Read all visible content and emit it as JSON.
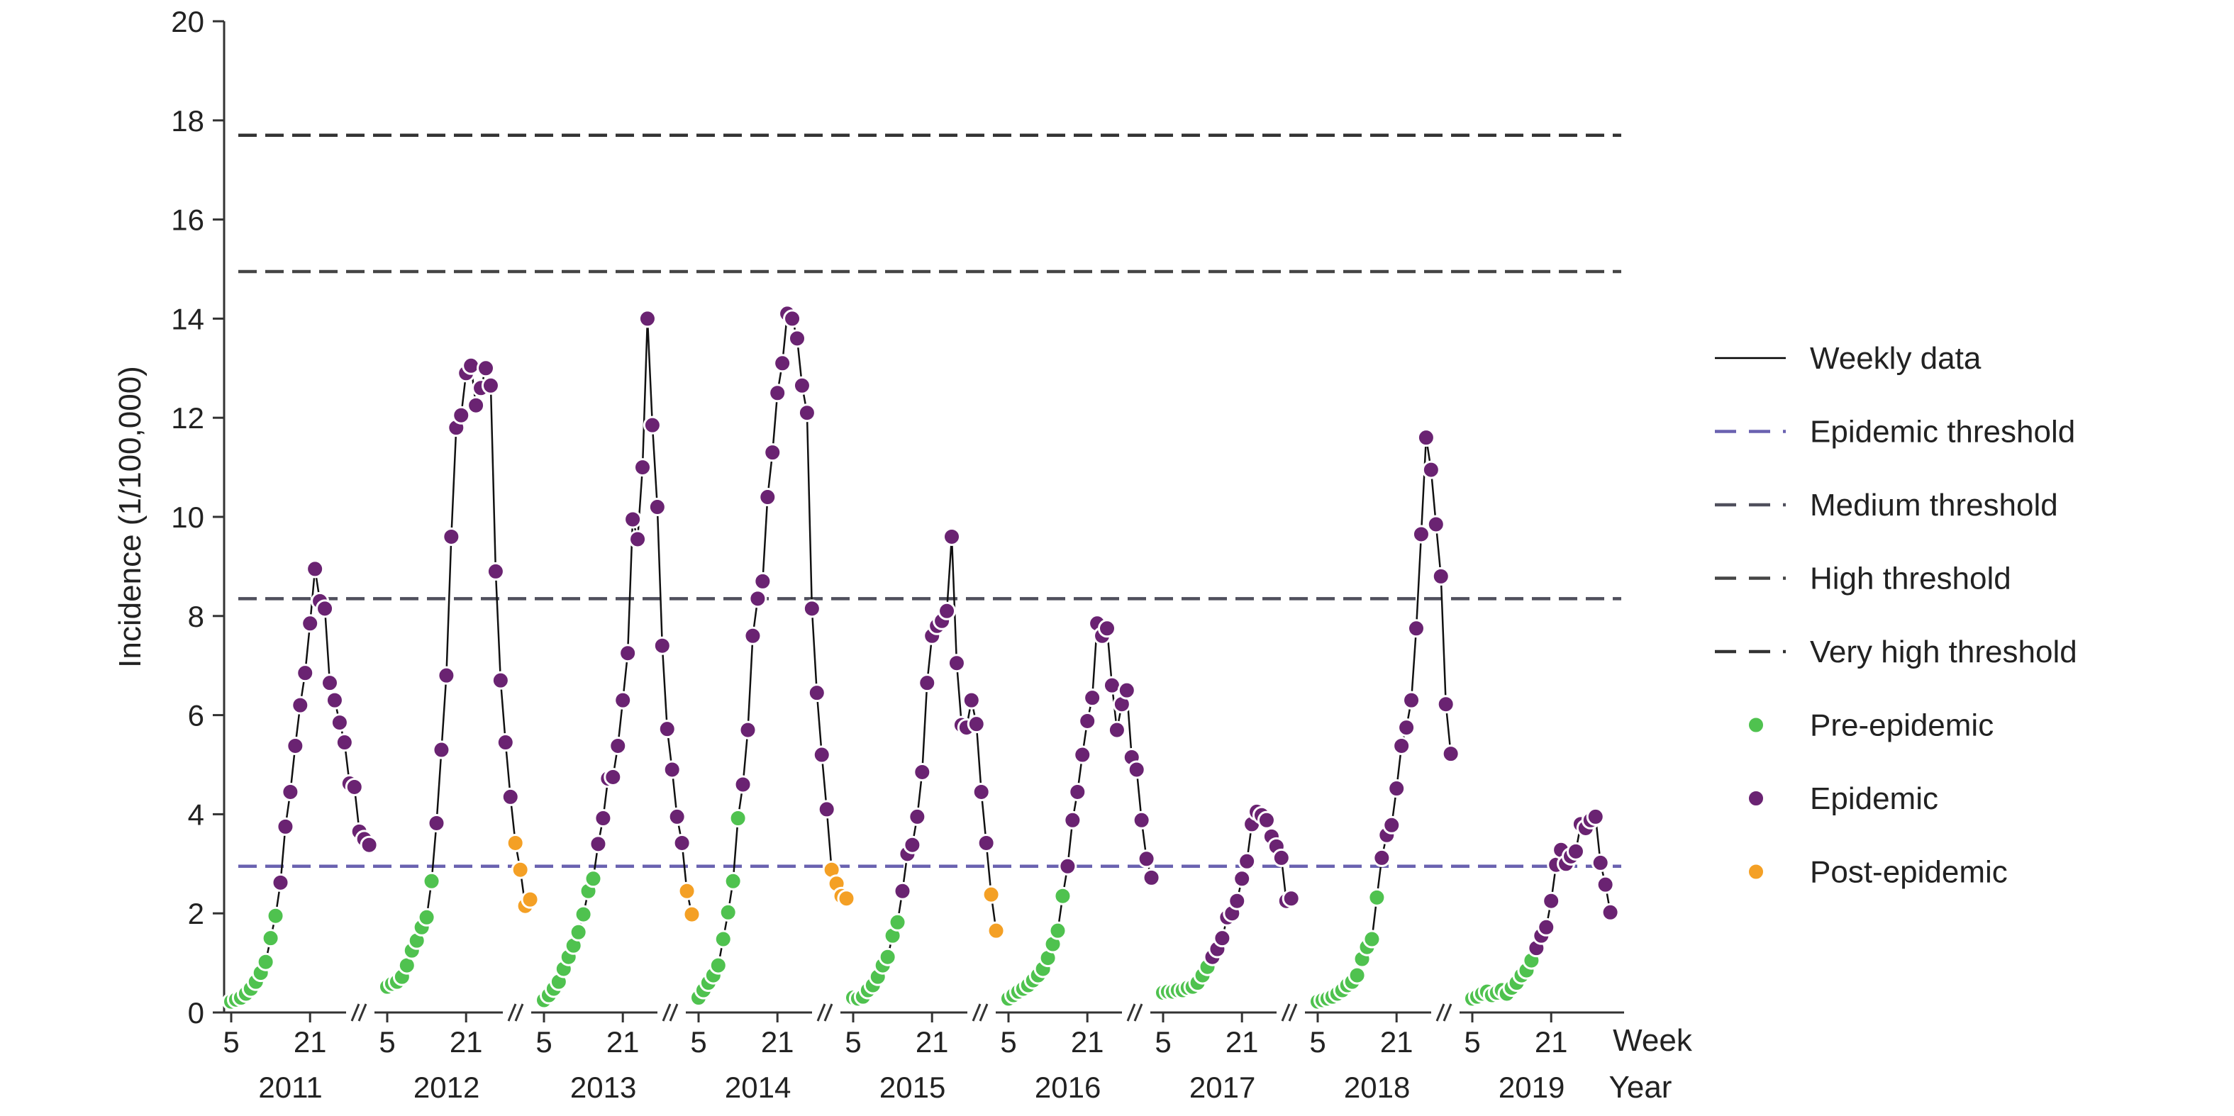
{
  "chart_data": {
    "type": "line",
    "ylabel": "Incidence (1/100,000)",
    "xlabel_week": "Week",
    "xlabel_year": "Year",
    "ylim": [
      0,
      20
    ],
    "yticks": [
      "0",
      "2",
      "4",
      "6",
      "8",
      "10",
      "12",
      "14",
      "16",
      "18",
      "20"
    ],
    "week_ticks": [
      "5",
      "21"
    ],
    "years": [
      "2011",
      "2012",
      "2013",
      "2014",
      "2015",
      "2016",
      "2017",
      "2018",
      "2019"
    ],
    "thresholds": [
      {
        "name": "Epidemic threshold",
        "value": 2.95,
        "color": "#6a62b0"
      },
      {
        "name": "Medium threshold",
        "value": 8.35,
        "color": "#4f4f5c"
      },
      {
        "name": "High threshold",
        "value": 14.95,
        "color": "#454545"
      },
      {
        "name": "Very high threshold",
        "value": 17.7,
        "color": "#333333"
      }
    ],
    "phase_colors": {
      "pre": "#4fc24f",
      "epi": "#6a2372",
      "post": "#f4a025"
    },
    "legend": {
      "position": "right",
      "items": [
        {
          "label": "Weekly data",
          "kind": "line",
          "color": "#000000"
        },
        {
          "label": "Epidemic threshold",
          "kind": "dash",
          "color": "#6a62b0"
        },
        {
          "label": "Medium threshold",
          "kind": "dash",
          "color": "#4f4f5c"
        },
        {
          "label": "High threshold",
          "kind": "dash",
          "color": "#454545"
        },
        {
          "label": "Very high threshold",
          "kind": "dash",
          "color": "#333333"
        },
        {
          "label": "Pre-epidemic",
          "kind": "dot",
          "color": "#4fc24f"
        },
        {
          "label": "Epidemic",
          "kind": "dot",
          "color": "#6a2372"
        },
        {
          "label": "Post-epidemic",
          "kind": "dot",
          "color": "#f4a025"
        }
      ]
    },
    "seasons": [
      {
        "year": "2011",
        "start_week": 5,
        "values": [
          0.22,
          0.26,
          0.3,
          0.38,
          0.48,
          0.62,
          0.8,
          1.02,
          1.5,
          1.95,
          2.62,
          3.75,
          4.45,
          5.38,
          6.2,
          6.85,
          7.85,
          8.95,
          8.3,
          8.15,
          6.65,
          6.3,
          5.85,
          5.45,
          4.62,
          4.55,
          3.65,
          3.5,
          3.38
        ],
        "phases": [
          "pre",
          "pre",
          "pre",
          "pre",
          "pre",
          "pre",
          "pre",
          "pre",
          "pre",
          "pre",
          "epi",
          "epi",
          "epi",
          "epi",
          "epi",
          "epi",
          "epi",
          "epi",
          "epi",
          "epi",
          "epi",
          "epi",
          "epi",
          "epi",
          "epi",
          "epi",
          "epi",
          "epi",
          "epi"
        ]
      },
      {
        "year": "2012",
        "start_week": 5,
        "values": [
          0.52,
          0.58,
          0.62,
          0.72,
          0.95,
          1.25,
          1.45,
          1.72,
          1.92,
          2.65,
          3.82,
          5.3,
          6.8,
          9.6,
          11.8,
          12.05,
          12.9,
          13.05,
          12.25,
          12.6,
          13.0,
          12.65,
          8.9,
          6.7,
          5.45,
          4.35,
          3.42,
          2.88,
          2.15,
          2.28
        ],
        "phases": [
          "pre",
          "pre",
          "pre",
          "pre",
          "pre",
          "pre",
          "pre",
          "pre",
          "pre",
          "pre",
          "epi",
          "epi",
          "epi",
          "epi",
          "epi",
          "epi",
          "epi",
          "epi",
          "epi",
          "epi",
          "epi",
          "epi",
          "epi",
          "epi",
          "epi",
          "epi",
          "post",
          "post",
          "post",
          "post"
        ]
      },
      {
        "year": "2013",
        "start_week": 5,
        "values": [
          0.25,
          0.35,
          0.48,
          0.62,
          0.88,
          1.12,
          1.35,
          1.62,
          1.98,
          2.45,
          2.7,
          3.4,
          3.92,
          4.72,
          4.75,
          5.38,
          6.3,
          7.25,
          9.95,
          9.55,
          11.0,
          14.0,
          11.85,
          10.2,
          7.4,
          5.72,
          4.9,
          3.95,
          3.42,
          2.45,
          1.98
        ],
        "phases": [
          "pre",
          "pre",
          "pre",
          "pre",
          "pre",
          "pre",
          "pre",
          "pre",
          "pre",
          "pre",
          "pre",
          "epi",
          "epi",
          "epi",
          "epi",
          "epi",
          "epi",
          "epi",
          "epi",
          "epi",
          "epi",
          "epi",
          "epi",
          "epi",
          "epi",
          "epi",
          "epi",
          "epi",
          "epi",
          "post",
          "post"
        ]
      },
      {
        "year": "2014",
        "start_week": 5,
        "values": [
          0.3,
          0.45,
          0.6,
          0.75,
          0.95,
          1.48,
          2.02,
          2.65,
          3.92,
          4.6,
          5.7,
          7.6,
          8.35,
          8.7,
          10.4,
          11.3,
          12.5,
          13.1,
          14.1,
          14.0,
          13.6,
          12.65,
          12.1,
          8.15,
          6.45,
          5.2,
          4.1,
          2.88,
          2.6,
          2.35,
          2.3
        ],
        "phases": [
          "pre",
          "pre",
          "pre",
          "pre",
          "pre",
          "pre",
          "pre",
          "pre",
          "pre",
          "epi",
          "epi",
          "epi",
          "epi",
          "epi",
          "epi",
          "epi",
          "epi",
          "epi",
          "epi",
          "epi",
          "epi",
          "epi",
          "epi",
          "epi",
          "epi",
          "epi",
          "epi",
          "post",
          "post",
          "post",
          "post"
        ]
      },
      {
        "year": "2015",
        "start_week": 5,
        "values": [
          0.3,
          0.28,
          0.32,
          0.45,
          0.55,
          0.72,
          0.95,
          1.12,
          1.55,
          1.82,
          2.45,
          3.2,
          3.38,
          3.95,
          4.85,
          6.65,
          7.6,
          7.8,
          7.9,
          8.1,
          9.6,
          7.05,
          5.8,
          5.75,
          6.3,
          5.82,
          4.45,
          3.42,
          2.38,
          1.65
        ],
        "phases": [
          "pre",
          "pre",
          "pre",
          "pre",
          "pre",
          "pre",
          "pre",
          "pre",
          "pre",
          "pre",
          "epi",
          "epi",
          "epi",
          "epi",
          "epi",
          "epi",
          "epi",
          "epi",
          "epi",
          "epi",
          "epi",
          "epi",
          "epi",
          "epi",
          "epi",
          "epi",
          "epi",
          "epi",
          "post",
          "post"
        ]
      },
      {
        "year": "2016",
        "start_week": 5,
        "values": [
          0.28,
          0.35,
          0.42,
          0.48,
          0.55,
          0.65,
          0.75,
          0.88,
          1.1,
          1.38,
          1.65,
          2.35,
          2.95,
          3.88,
          4.45,
          5.2,
          5.88,
          6.35,
          7.85,
          7.6,
          7.75,
          6.6,
          5.7,
          6.22,
          6.5,
          5.15,
          4.9,
          3.88,
          3.1,
          2.72
        ],
        "phases": [
          "pre",
          "pre",
          "pre",
          "pre",
          "pre",
          "pre",
          "pre",
          "pre",
          "pre",
          "pre",
          "pre",
          "pre",
          "epi",
          "epi",
          "epi",
          "epi",
          "epi",
          "epi",
          "epi",
          "epi",
          "epi",
          "epi",
          "epi",
          "epi",
          "epi",
          "epi",
          "epi",
          "epi",
          "epi",
          "epi"
        ]
      },
      {
        "year": "2017",
        "start_week": 5,
        "values": [
          0.4,
          0.42,
          0.42,
          0.45,
          0.45,
          0.5,
          0.52,
          0.6,
          0.75,
          0.92,
          1.12,
          1.28,
          1.5,
          1.92,
          2.0,
          2.25,
          2.7,
          3.05,
          3.8,
          4.05,
          3.98,
          3.88,
          3.55,
          3.35,
          3.12,
          2.25,
          2.3
        ],
        "phases": [
          "pre",
          "pre",
          "pre",
          "pre",
          "pre",
          "pre",
          "pre",
          "pre",
          "pre",
          "pre",
          "epi",
          "epi",
          "epi",
          "epi",
          "epi",
          "epi",
          "epi",
          "epi",
          "epi",
          "epi",
          "epi",
          "epi",
          "epi",
          "epi",
          "epi",
          "epi",
          "epi"
        ]
      },
      {
        "year": "2018",
        "start_week": 5,
        "values": [
          0.22,
          0.25,
          0.28,
          0.32,
          0.38,
          0.45,
          0.55,
          0.62,
          0.75,
          1.08,
          1.32,
          1.48,
          2.32,
          3.12,
          3.58,
          3.78,
          4.52,
          5.38,
          5.75,
          6.3,
          7.75,
          9.65,
          11.6,
          10.95,
          9.85,
          8.8,
          6.22,
          5.22
        ],
        "phases": [
          "pre",
          "pre",
          "pre",
          "pre",
          "pre",
          "pre",
          "pre",
          "pre",
          "pre",
          "pre",
          "pre",
          "pre",
          "pre",
          "epi",
          "epi",
          "epi",
          "epi",
          "epi",
          "epi",
          "epi",
          "epi",
          "epi",
          "epi",
          "epi",
          "epi",
          "epi",
          "epi",
          "epi"
        ]
      },
      {
        "year": "2019",
        "start_week": 5,
        "values": [
          0.28,
          0.32,
          0.38,
          0.42,
          0.35,
          0.4,
          0.45,
          0.38,
          0.5,
          0.6,
          0.75,
          0.85,
          1.05,
          1.3,
          1.55,
          1.72,
          2.25,
          2.98,
          3.28,
          3.0,
          3.15,
          3.25,
          3.8,
          3.72,
          3.88,
          3.95,
          3.02,
          2.58,
          2.02
        ],
        "phases": [
          "pre",
          "pre",
          "pre",
          "pre",
          "pre",
          "pre",
          "pre",
          "pre",
          "pre",
          "pre",
          "pre",
          "pre",
          "pre",
          "epi",
          "epi",
          "epi",
          "epi",
          "epi",
          "epi",
          "epi",
          "epi",
          "epi",
          "epi",
          "epi",
          "epi",
          "epi",
          "epi",
          "epi",
          "epi"
        ]
      }
    ]
  }
}
